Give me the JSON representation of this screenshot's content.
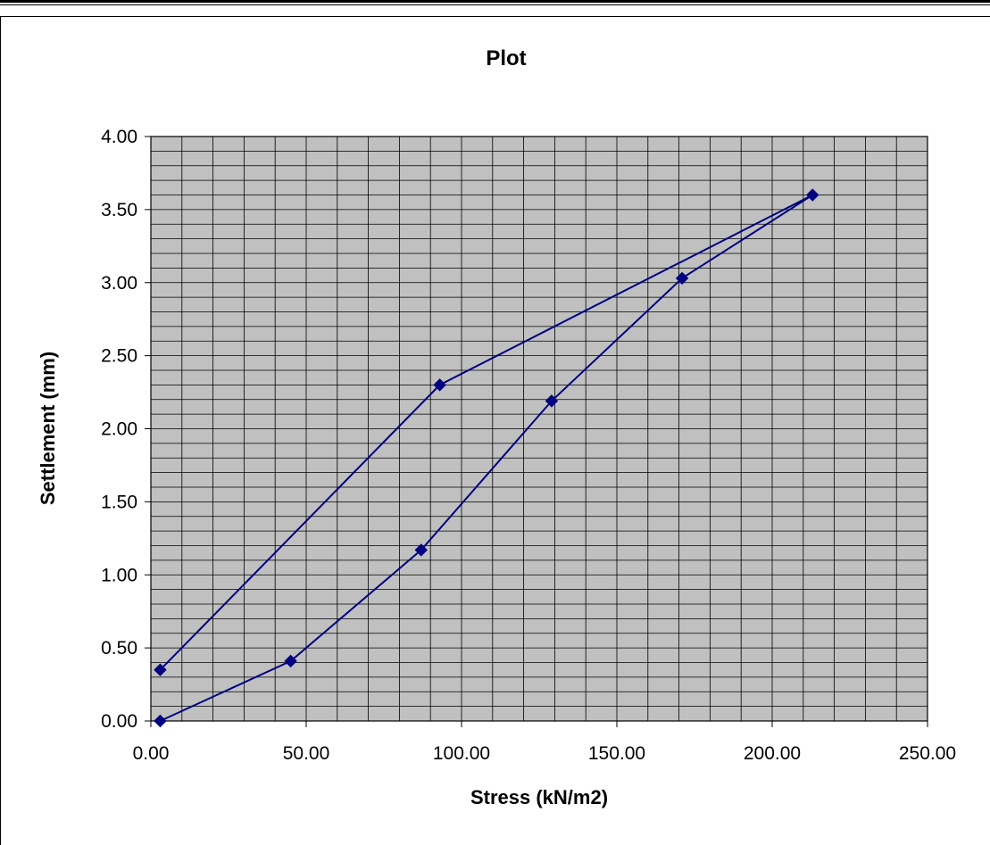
{
  "chart_data": {
    "type": "line",
    "title": "Plot",
    "xlabel": "Stress (kN/m2)",
    "ylabel": "Settlement (mm)",
    "xlim": [
      0,
      250
    ],
    "ylim": [
      0,
      4
    ],
    "x_ticks": [
      "0.00",
      "50.00",
      "100.00",
      "150.00",
      "200.00",
      "250.00"
    ],
    "y_ticks": [
      "0.00",
      "0.50",
      "1.00",
      "1.50",
      "2.00",
      "2.50",
      "3.00",
      "3.50",
      "4.00"
    ],
    "grid": true,
    "legend": "none",
    "plot_background": "#c0c0c0",
    "series_color": "#000080",
    "series": [
      {
        "x": [
          3,
          45,
          87,
          129,
          171,
          213,
          93,
          3
        ],
        "y": [
          0.0,
          0.41,
          1.17,
          2.19,
          3.03,
          3.6,
          2.3,
          0.35
        ]
      }
    ]
  }
}
